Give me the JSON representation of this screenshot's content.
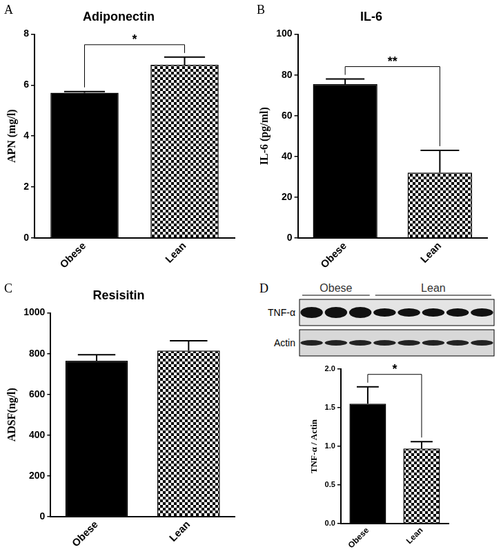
{
  "chart_data": [
    {
      "panel": "A",
      "type": "bar",
      "title": "Adiponectin",
      "y_label": "APN (mg/l)",
      "categories": [
        "Obese",
        "Lean"
      ],
      "values": [
        5.7,
        6.8
      ],
      "errors": [
        0.05,
        0.3
      ],
      "colors": [
        "#000000",
        "#000000"
      ],
      "ylim": [
        0,
        8
      ],
      "yticks": [
        0,
        2,
        4,
        6,
        8
      ],
      "grid": false,
      "annotations": [
        {
          "text": "*",
          "between": [
            0,
            1
          ]
        }
      ]
    },
    {
      "panel": "B",
      "type": "bar",
      "title": "IL-6",
      "y_label": "IL-6 (pg/ml)",
      "categories": [
        "Obese",
        "Lean"
      ],
      "values": [
        75.5,
        32
      ],
      "errors": [
        2.5,
        11
      ],
      "colors": [
        "#000000",
        "#000000"
      ],
      "ylim": [
        0,
        100
      ],
      "yticks": [
        0,
        20,
        40,
        60,
        80,
        100
      ],
      "grid": false,
      "annotations": [
        {
          "text": "**",
          "between": [
            0,
            1
          ]
        }
      ]
    },
    {
      "panel": "C",
      "type": "bar",
      "title": "Resisitin",
      "y_label": "ADSF(ng/l)",
      "categories": [
        "Obese",
        "Lean"
      ],
      "values": [
        765,
        815
      ],
      "errors": [
        30,
        48
      ],
      "colors": [
        "#000000",
        "#000000"
      ],
      "ylim": [
        0,
        1000
      ],
      "yticks": [
        0,
        200,
        400,
        600,
        800,
        1000
      ],
      "grid": false,
      "annotations": []
    },
    {
      "panel": "D",
      "type": "bar",
      "y_label": "TNF-α / Actin",
      "categories": [
        "Obese",
        "Lean"
      ],
      "values": [
        1.55,
        0.97
      ],
      "errors": [
        0.22,
        0.09
      ],
      "colors": [
        "#000000",
        "#000000"
      ],
      "ylim": [
        0,
        2
      ],
      "yticks": [
        {
          "value": 0,
          "label": "0.0"
        },
        {
          "value": 0.5,
          "label": "0.5"
        },
        {
          "value": 1,
          "label": "1.0"
        },
        {
          "value": 1.5,
          "label": "1.5"
        },
        {
          "value": 2,
          "label": "2.0"
        }
      ],
      "grid": false,
      "annotations": [
        {
          "text": "*",
          "between": [
            0,
            1
          ]
        }
      ],
      "blot": {
        "groups": [
          {
            "label": "Obese",
            "lanes": 3
          },
          {
            "label": "Lean",
            "lanes": 5
          }
        ],
        "rows": [
          "TNF-α",
          "Actin"
        ]
      }
    }
  ]
}
